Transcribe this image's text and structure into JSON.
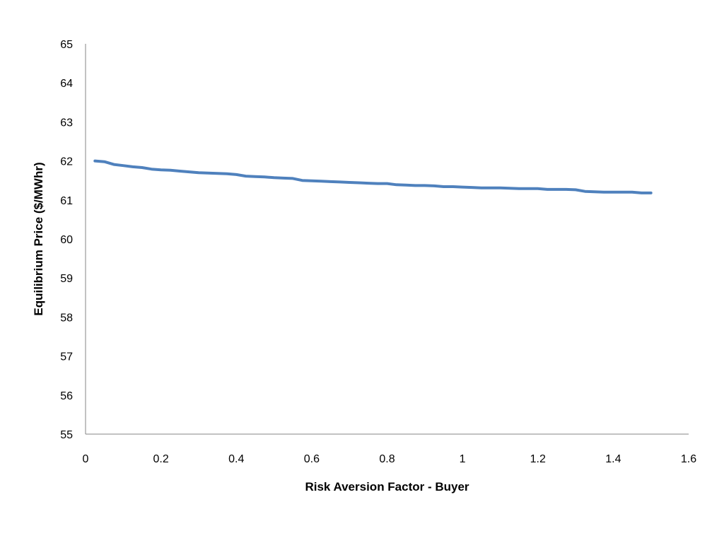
{
  "chart_data": {
    "type": "line",
    "title": "",
    "xlabel": "Risk Aversion Factor - Buyer",
    "ylabel": "Equilibrium Price ($/MWhr)",
    "xlim": [
      0,
      1.6
    ],
    "ylim": [
      55,
      65
    ],
    "xticks": [
      "0",
      "0.2",
      "0.4",
      "0.6",
      "0.8",
      "1",
      "1.2",
      "1.4",
      "1.6"
    ],
    "yticks": [
      "55",
      "56",
      "57",
      "58",
      "59",
      "60",
      "61",
      "62",
      "63",
      "64",
      "65"
    ],
    "grid": false,
    "legend": "none",
    "series": [
      {
        "color": "#4f81bd",
        "x": [
          0.025,
          0.05,
          0.075,
          0.1,
          0.125,
          0.15,
          0.175,
          0.2,
          0.225,
          0.25,
          0.275,
          0.3,
          0.325,
          0.35,
          0.375,
          0.4,
          0.425,
          0.45,
          0.475,
          0.5,
          0.525,
          0.55,
          0.575,
          0.6,
          0.625,
          0.65,
          0.675,
          0.7,
          0.725,
          0.75,
          0.775,
          0.8,
          0.825,
          0.85,
          0.875,
          0.9,
          0.925,
          0.95,
          0.975,
          1.0,
          1.025,
          1.05,
          1.075,
          1.1,
          1.125,
          1.15,
          1.175,
          1.2,
          1.225,
          1.25,
          1.275,
          1.3,
          1.325,
          1.35,
          1.375,
          1.4,
          1.425,
          1.45,
          1.475,
          1.5
        ],
        "y": [
          62.0,
          61.98,
          61.91,
          61.88,
          61.85,
          61.83,
          61.79,
          61.77,
          61.76,
          61.74,
          61.72,
          61.7,
          61.69,
          61.68,
          61.67,
          61.65,
          61.61,
          61.6,
          61.59,
          61.57,
          61.56,
          61.55,
          61.5,
          61.49,
          61.48,
          61.47,
          61.46,
          61.45,
          61.44,
          61.43,
          61.42,
          61.42,
          61.39,
          61.38,
          61.37,
          61.37,
          61.36,
          61.34,
          61.34,
          61.33,
          61.32,
          61.31,
          61.31,
          61.31,
          61.3,
          61.29,
          61.29,
          61.29,
          61.27,
          61.27,
          61.27,
          61.26,
          61.22,
          61.21,
          61.2,
          61.2,
          61.2,
          61.2,
          61.18,
          61.18
        ]
      }
    ]
  }
}
